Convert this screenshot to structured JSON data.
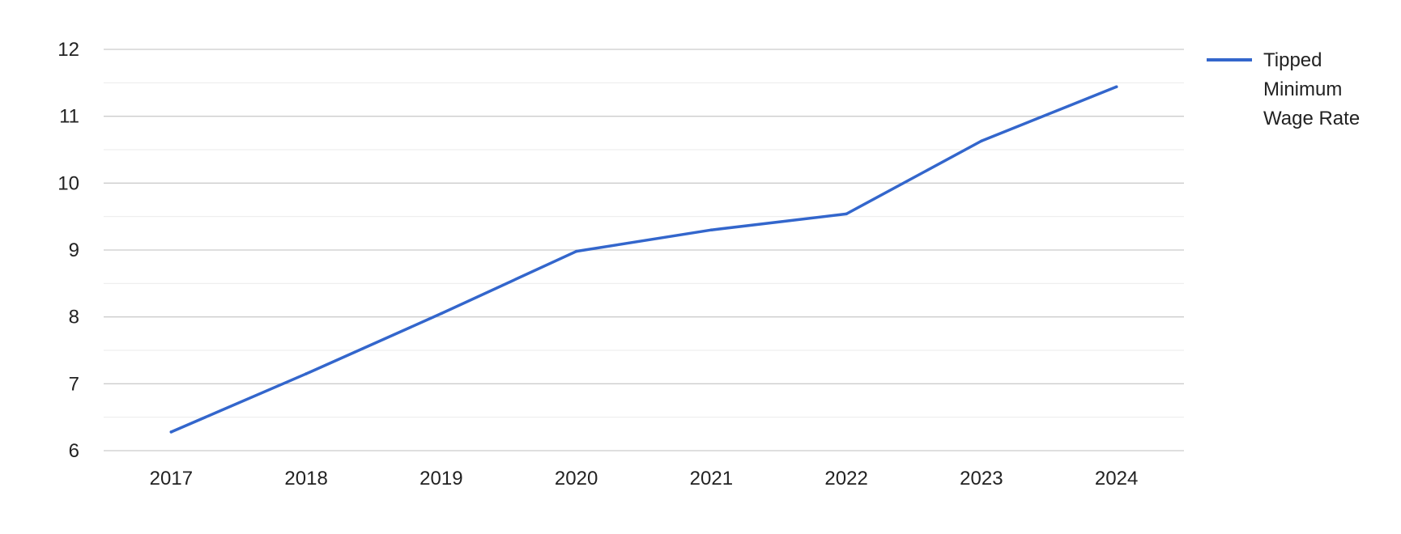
{
  "chart_data": {
    "type": "line",
    "title": "",
    "xlabel": "",
    "ylabel": "",
    "categories": [
      "2017",
      "2018",
      "2019",
      "2020",
      "2021",
      "2022",
      "2023",
      "2024"
    ],
    "series": [
      {
        "name": "Tipped Minimum Wage Rate",
        "values": [
          6.28,
          7.15,
          8.05,
          8.98,
          9.3,
          9.54,
          10.63,
          11.44
        ],
        "color": "#3366cc"
      }
    ],
    "ylim": [
      6,
      12
    ],
    "yticks": [
      "6",
      "7",
      "8",
      "9",
      "10",
      "11",
      "12"
    ],
    "minor_gridlines": true,
    "grid": true,
    "legend": {
      "position": "right",
      "lines": [
        "Tipped",
        "Minimum",
        "Wage Rate"
      ]
    },
    "colors": {
      "series": "#3366cc",
      "major_grid": "#cccccc",
      "minor_grid": "#ebebeb",
      "text": "#222222"
    }
  }
}
